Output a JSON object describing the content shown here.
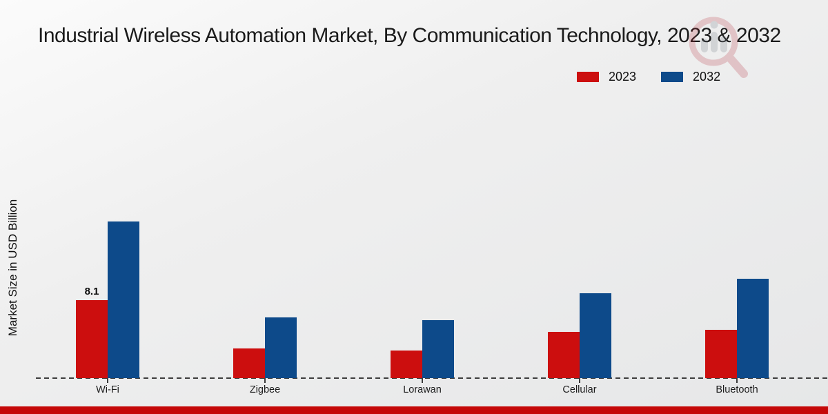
{
  "chart_data": {
    "type": "bar",
    "title": "Industrial Wireless Automation Market, By Communication Technology, 2023 & 2032",
    "ylabel": "Market Size in USD Billion",
    "xlabel": "",
    "categories": [
      "Wi-Fi",
      "Zigbee",
      "Lorawan",
      "Cellular",
      "Bluetooth"
    ],
    "series": [
      {
        "name": "2023",
        "color": "#cc0e0e",
        "values": [
          8.1,
          3.1,
          2.9,
          4.8,
          5.0
        ]
      },
      {
        "name": "2032",
        "color": "#0d4a8a",
        "values": [
          16.3,
          6.3,
          6.0,
          8.8,
          10.3
        ]
      }
    ],
    "point_labels": [
      {
        "category_index": 0,
        "series_index": 0,
        "text": "8.1"
      }
    ],
    "ylim": [
      0,
      18
    ],
    "grid": false,
    "legend_position": "top-right",
    "axis_style": "dashed-baseline-only"
  },
  "accents": {
    "footer_bar_color": "#c50808",
    "axis_color": "#3c3c3c"
  }
}
